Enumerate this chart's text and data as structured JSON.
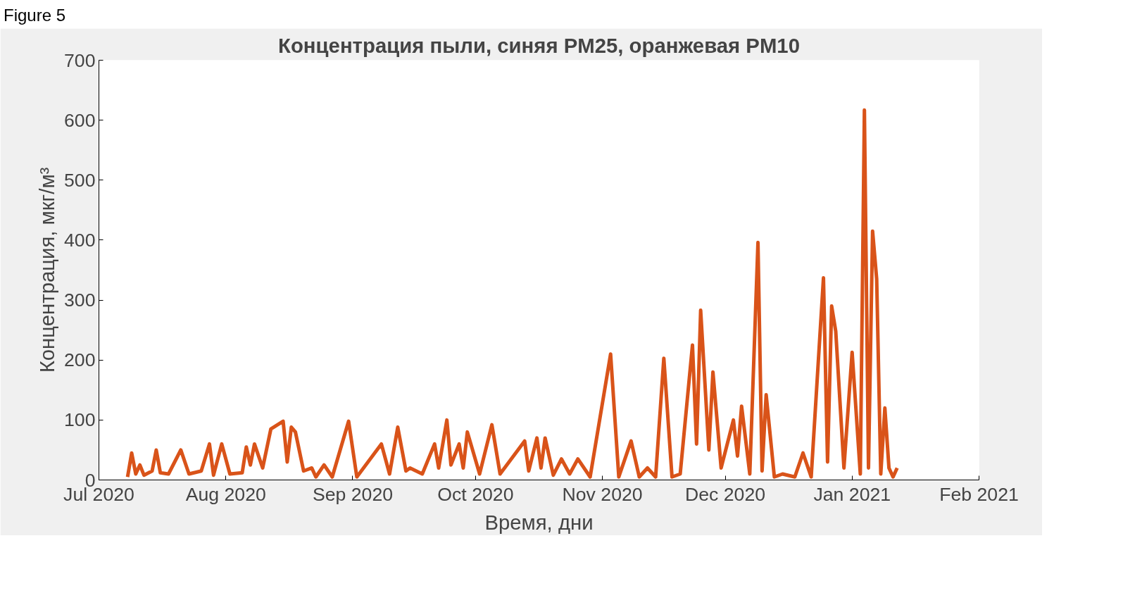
{
  "chart_data": {
    "type": "line",
    "title": "Концентрация пыли, синяя PM25, оранжевая PM10",
    "xlabel": "Время, дни",
    "ylabel": "Концентрация, мкг/м³",
    "annotations": [
      "Figure 5"
    ],
    "x": [
      "2020-07-08",
      "2020-07-09",
      "2020-07-10",
      "2020-07-11",
      "2020-07-12",
      "2020-07-14",
      "2020-07-15",
      "2020-07-16",
      "2020-07-18",
      "2020-07-21",
      "2020-07-23",
      "2020-07-26",
      "2020-07-28",
      "2020-07-29",
      "2020-07-31",
      "2020-08-02",
      "2020-08-05",
      "2020-08-06",
      "2020-08-07",
      "2020-08-08",
      "2020-08-10",
      "2020-08-12",
      "2020-08-15",
      "2020-08-16",
      "2020-08-17",
      "2020-08-18",
      "2020-08-20",
      "2020-08-22",
      "2020-08-23",
      "2020-08-25",
      "2020-08-27",
      "2020-08-31",
      "2020-09-02",
      "2020-09-08",
      "2020-09-10",
      "2020-09-12",
      "2020-09-14",
      "2020-09-15",
      "2020-09-18",
      "2020-09-21",
      "2020-09-22",
      "2020-09-24",
      "2020-09-25",
      "2020-09-27",
      "2020-09-28",
      "2020-09-29",
      "2020-10-02",
      "2020-10-05",
      "2020-10-07",
      "2020-10-13",
      "2020-10-14",
      "2020-10-16",
      "2020-10-17",
      "2020-10-18",
      "2020-10-20",
      "2020-10-22",
      "2020-10-24",
      "2020-10-26",
      "2020-10-29",
      "2020-11-03",
      "2020-11-05",
      "2020-11-08",
      "2020-11-10",
      "2020-11-12",
      "2020-11-14",
      "2020-11-16",
      "2020-11-18",
      "2020-11-20",
      "2020-11-23",
      "2020-11-24",
      "2020-11-25",
      "2020-11-27",
      "2020-11-28",
      "2020-11-30",
      "2020-12-03",
      "2020-12-04",
      "2020-12-05",
      "2020-12-07",
      "2020-12-09",
      "2020-12-10",
      "2020-12-11",
      "2020-12-13",
      "2020-12-15",
      "2020-12-18",
      "2020-12-20",
      "2020-12-22",
      "2020-12-25",
      "2020-12-26",
      "2020-12-27",
      "2020-12-28",
      "2020-12-30",
      "2021-01-01",
      "2021-01-03",
      "2021-01-04",
      "2021-01-05",
      "2021-01-06",
      "2021-01-07",
      "2021-01-08",
      "2021-01-09",
      "2021-01-10",
      "2021-01-11",
      "2021-01-12"
    ],
    "series": [
      {
        "color": "#d95319",
        "values": [
          5,
          45,
          10,
          25,
          8,
          15,
          50,
          12,
          10,
          50,
          10,
          15,
          60,
          8,
          60,
          10,
          12,
          55,
          25,
          60,
          20,
          85,
          98,
          30,
          88,
          80,
          15,
          20,
          5,
          25,
          5,
          98,
          5,
          60,
          10,
          88,
          15,
          20,
          10,
          60,
          20,
          100,
          25,
          60,
          20,
          80,
          10,
          92,
          10,
          65,
          15,
          70,
          20,
          70,
          8,
          35,
          10,
          35,
          5,
          210,
          5,
          65,
          5,
          20,
          5,
          203,
          5,
          10,
          225,
          60,
          283,
          50,
          180,
          20,
          100,
          40,
          123,
          10,
          396,
          15,
          142,
          5,
          10,
          5,
          45,
          5,
          337,
          30,
          290,
          248,
          20,
          213,
          10,
          617,
          20,
          415,
          335,
          10,
          120,
          20,
          5,
          20
        ]
      }
    ],
    "xlim": [
      "2020-07-01",
      "2021-02-01"
    ],
    "xticks": [
      {
        "value": "2020-07-01",
        "label": "Jul 2020"
      },
      {
        "value": "2020-08-01",
        "label": "Aug 2020"
      },
      {
        "value": "2020-09-01",
        "label": "Sep 2020"
      },
      {
        "value": "2020-10-01",
        "label": "Oct 2020"
      },
      {
        "value": "2020-11-01",
        "label": "Nov 2020"
      },
      {
        "value": "2020-12-01",
        "label": "Dec 2020"
      },
      {
        "value": "2021-01-01",
        "label": "Jan 2021"
      },
      {
        "value": "2021-02-01",
        "label": "Feb 2021"
      }
    ],
    "ylim": [
      0,
      700
    ],
    "yticks": [
      0,
      100,
      200,
      300,
      400,
      500,
      600,
      700
    ],
    "grid": false,
    "marker": "none",
    "line_style": "solid"
  }
}
